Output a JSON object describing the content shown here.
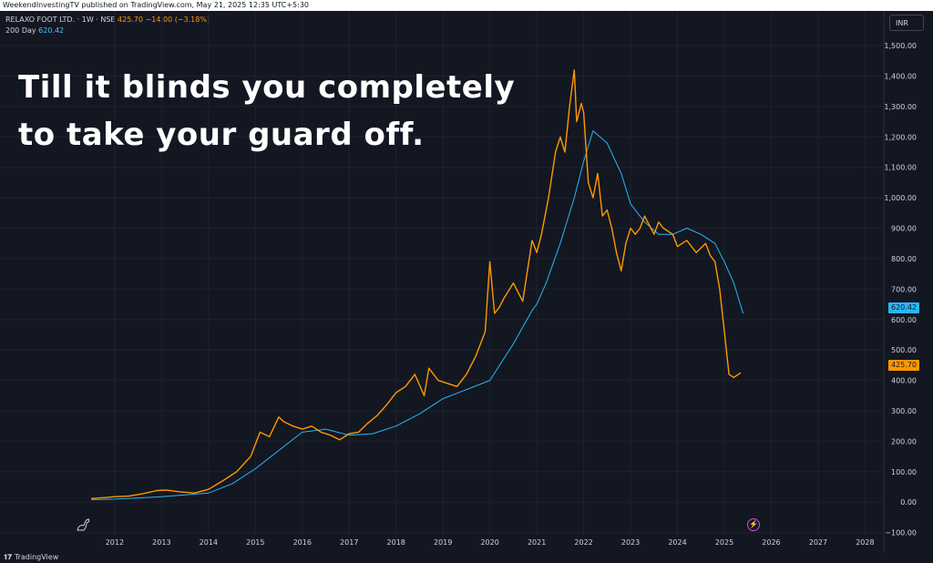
{
  "top_bar": {
    "text": "WeekendInvestingTV published on TradingView.com, May 21, 2025 12:35 UTC+5:30"
  },
  "legend": {
    "symbol": "RELAXO FOOT LTD. · 1W · NSE",
    "last": "425.70",
    "change": "−14.00 (−3.18%)",
    "ma_label": "200 Day",
    "ma_value": "620.42"
  },
  "headline": {
    "line1": "Till it blinds you completely",
    "line2": "to take your guard off."
  },
  "currency": "INR",
  "price_tags": {
    "ma": "620.42",
    "price": "425.70"
  },
  "footer": {
    "brand": "TradingView"
  },
  "colors": {
    "background": "#131722",
    "price_line": "#ff9800",
    "ma_line": "#29b6f6",
    "grid": "#1e222d",
    "axis_text": "#d1d4dc"
  },
  "chart_data": {
    "type": "line",
    "x_tick_labels": [
      "2012",
      "2013",
      "2014",
      "2015",
      "2016",
      "2017",
      "2018",
      "2019",
      "2020",
      "2021",
      "2022",
      "2023",
      "2024",
      "2025",
      "2026",
      "2027",
      "2028"
    ],
    "y_tick_labels": [
      "1,500.00",
      "1,400.00",
      "1,300.00",
      "1,200.00",
      "1,100.00",
      "1,000.00",
      "900.00",
      "800.00",
      "700.00",
      "600.00",
      "500.00",
      "400.00",
      "300.00",
      "200.00",
      "100.00",
      "0.00",
      "−100.00"
    ],
    "y_ticks": [
      1500,
      1400,
      1300,
      1200,
      1100,
      1000,
      900,
      800,
      700,
      600,
      500,
      400,
      300,
      200,
      100,
      0,
      -100
    ],
    "ylim": [
      -110,
      1560
    ],
    "xlim": [
      2011.4,
      2028.4
    ],
    "x_ticks": [
      2012,
      2013,
      2014,
      2015,
      2016,
      2017,
      2018,
      2019,
      2020,
      2021,
      2022,
      2023,
      2024,
      2025,
      2026,
      2027,
      2028
    ],
    "series": [
      {
        "name": "RELAXO FOOT LTD.",
        "color": "#ff9800",
        "x": [
          2011.5,
          2011.8,
          2012.0,
          2012.3,
          2012.6,
          2012.9,
          2013.1,
          2013.4,
          2013.7,
          2014.0,
          2014.3,
          2014.6,
          2014.9,
          2015.1,
          2015.3,
          2015.5,
          2015.6,
          2015.8,
          2016.0,
          2016.2,
          2016.4,
          2016.6,
          2016.8,
          2017.0,
          2017.2,
          2017.4,
          2017.6,
          2017.8,
          2018.0,
          2018.2,
          2018.4,
          2018.6,
          2018.7,
          2018.9,
          2019.1,
          2019.3,
          2019.5,
          2019.7,
          2019.9,
          2020.0,
          2020.1,
          2020.2,
          2020.3,
          2020.5,
          2020.7,
          2020.9,
          2021.0,
          2021.1,
          2021.25,
          2021.4,
          2021.5,
          2021.6,
          2021.7,
          2021.8,
          2021.85,
          2021.95,
          2022.0,
          2022.1,
          2022.2,
          2022.3,
          2022.4,
          2022.5,
          2022.6,
          2022.7,
          2022.8,
          2022.9,
          2023.0,
          2023.1,
          2023.2,
          2023.3,
          2023.5,
          2023.6,
          2023.7,
          2023.9,
          2024.0,
          2024.2,
          2024.4,
          2024.6,
          2024.7,
          2024.8,
          2024.9,
          2025.0,
          2025.1,
          2025.2,
          2025.3,
          2025.35
        ],
        "y": [
          12,
          15,
          18,
          20,
          28,
          38,
          40,
          34,
          30,
          42,
          70,
          100,
          150,
          230,
          215,
          280,
          265,
          250,
          240,
          250,
          230,
          220,
          205,
          225,
          230,
          260,
          285,
          320,
          360,
          380,
          420,
          350,
          440,
          400,
          390,
          380,
          420,
          480,
          560,
          790,
          620,
          640,
          670,
          720,
          660,
          860,
          820,
          880,
          1000,
          1150,
          1200,
          1150,
          1300,
          1420,
          1250,
          1310,
          1280,
          1050,
          1000,
          1080,
          940,
          960,
          900,
          820,
          760,
          850,
          900,
          880,
          900,
          940,
          880,
          920,
          900,
          880,
          840,
          860,
          820,
          850,
          810,
          790,
          700,
          560,
          420,
          410,
          420,
          425
        ]
      },
      {
        "name": "200 Day",
        "color": "#29b6f6",
        "x": [
          2011.5,
          2012.0,
          2012.5,
          2013.0,
          2013.5,
          2014.0,
          2014.5,
          2015.0,
          2015.5,
          2016.0,
          2016.5,
          2017.0,
          2017.5,
          2018.0,
          2018.5,
          2019.0,
          2019.5,
          2020.0,
          2020.5,
          2020.9,
          2021.0,
          2021.2,
          2021.5,
          2021.8,
          2022.0,
          2022.2,
          2022.5,
          2022.8,
          2023.0,
          2023.3,
          2023.6,
          2023.9,
          2024.2,
          2024.5,
          2024.8,
          2025.0,
          2025.2,
          2025.4
        ],
        "y": [
          8,
          10,
          14,
          18,
          24,
          30,
          60,
          110,
          170,
          230,
          240,
          220,
          225,
          250,
          290,
          340,
          370,
          400,
          520,
          630,
          650,
          720,
          850,
          1000,
          1120,
          1220,
          1180,
          1080,
          980,
          920,
          880,
          880,
          900,
          880,
          850,
          790,
          720,
          620
        ]
      }
    ]
  }
}
